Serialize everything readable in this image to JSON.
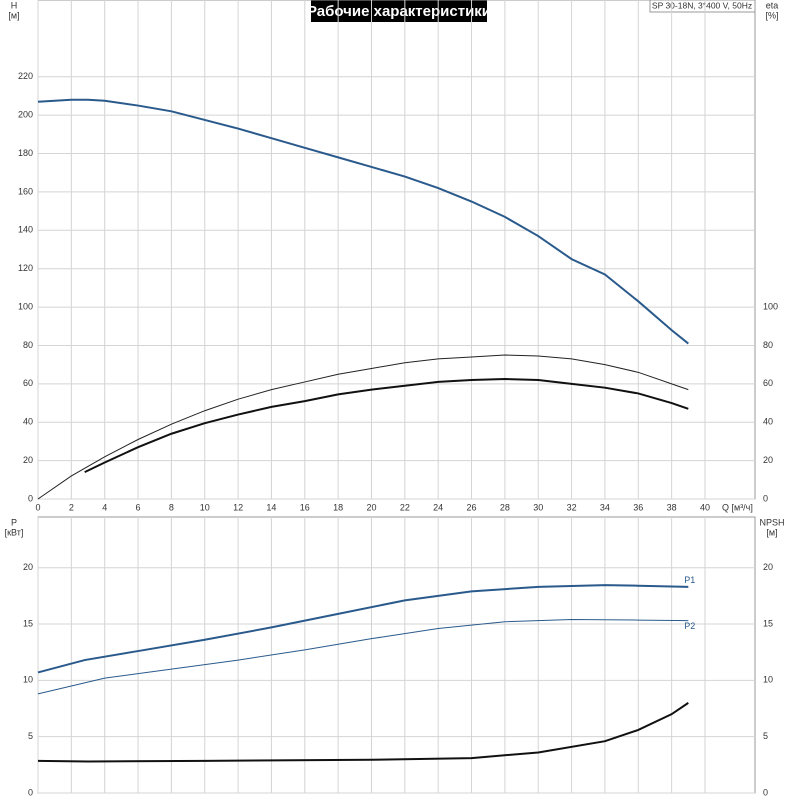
{
  "chart_data": [
    {
      "type": "line",
      "title": "Рабочие характеристики",
      "subtitle": "SP 30-18N, 3*400 V, 50Hz",
      "ylabel": "H",
      "yunit": "[м]",
      "y2label": "eta",
      "y2unit": "[%]",
      "xlabel": "Q [м³/ч]",
      "xlim": [
        0,
        43
      ],
      "xticks": [
        0,
        2,
        4,
        6,
        8,
        10,
        12,
        14,
        16,
        18,
        20,
        22,
        24,
        26,
        28,
        30,
        32,
        34,
        36,
        38,
        40
      ],
      "ylim": [
        0,
        260
      ],
      "yticks": [
        0,
        20,
        40,
        60,
        80,
        100,
        120,
        140,
        160,
        180,
        200,
        220
      ],
      "y2lim": [
        0,
        260
      ],
      "y2ticks": [
        0,
        20,
        40,
        60,
        80,
        100
      ],
      "grid": true,
      "series": [
        {
          "color": "#2a5a8c",
          "line_width": 2,
          "x": [
            0,
            2,
            3,
            4,
            6,
            8,
            10,
            12,
            14,
            16,
            18,
            20,
            22,
            24,
            26,
            28,
            30,
            32,
            34,
            36,
            38,
            39
          ],
          "values": [
            207,
            208,
            208,
            207.5,
            205,
            202,
            197.5,
            193,
            188,
            183,
            178,
            173,
            168,
            162,
            155,
            147,
            137,
            125,
            117,
            103,
            88,
            81
          ]
        },
        {
          "color": "#222222",
          "line_width": 1,
          "axis": "y2",
          "x": [
            0,
            2,
            4,
            6,
            8,
            10,
            12,
            14,
            16,
            18,
            20,
            22,
            24,
            26,
            28,
            30,
            32,
            34,
            36,
            38,
            39
          ],
          "values": [
            0,
            12,
            22,
            31,
            39,
            46,
            52,
            57,
            61,
            65,
            68,
            71,
            73,
            74,
            75,
            74.5,
            73,
            70,
            66,
            60,
            57
          ]
        },
        {
          "color": "#111111",
          "line_width": 2,
          "axis": "y2",
          "x": [
            2.8,
            4,
            6,
            8,
            10,
            12,
            14,
            16,
            18,
            20,
            22,
            24,
            26,
            28,
            30,
            32,
            34,
            36,
            38,
            39
          ],
          "values": [
            14,
            19,
            27,
            34,
            39.5,
            44,
            48,
            51,
            54.5,
            57,
            59,
            61,
            62,
            62.5,
            62,
            60,
            58,
            55,
            50,
            47
          ]
        }
      ]
    },
    {
      "type": "line",
      "ylabel": "P",
      "yunit": "[кВт]",
      "y2label": "NPSH",
      "y2unit": "[м]",
      "xlim": [
        0,
        43
      ],
      "ylim": [
        0,
        24.5
      ],
      "yticks": [
        0,
        5,
        10,
        15,
        20
      ],
      "y2lim": [
        0,
        24.5
      ],
      "y2ticks": [
        0,
        5,
        10,
        15,
        20
      ],
      "grid": true,
      "series": [
        {
          "name": "P1",
          "label_side": "above",
          "color": "#2a5a8c",
          "line_width": 2,
          "x": [
            0,
            2.8,
            6,
            10,
            14,
            18,
            22,
            26,
            30,
            34,
            36,
            39
          ],
          "values": [
            10.7,
            11.8,
            12.6,
            13.6,
            14.7,
            15.9,
            17.1,
            17.9,
            18.3,
            18.45,
            18.4,
            18.3
          ]
        },
        {
          "name": "P2",
          "label_side": "below",
          "color": "#2a5a8c",
          "line_width": 1,
          "x": [
            0,
            4,
            8,
            12,
            16,
            20,
            24,
            28,
            32,
            36,
            39
          ],
          "values": [
            8.8,
            10.2,
            11,
            11.8,
            12.7,
            13.7,
            14.6,
            15.2,
            15.4,
            15.35,
            15.3
          ]
        },
        {
          "color": "#111111",
          "line_width": 2,
          "axis": "y2",
          "x": [
            0,
            3,
            10,
            20,
            26,
            30,
            34,
            36,
            38,
            39
          ],
          "values": [
            2.85,
            2.8,
            2.85,
            2.95,
            3.1,
            3.6,
            4.6,
            5.6,
            7.0,
            8.0
          ]
        }
      ]
    }
  ]
}
